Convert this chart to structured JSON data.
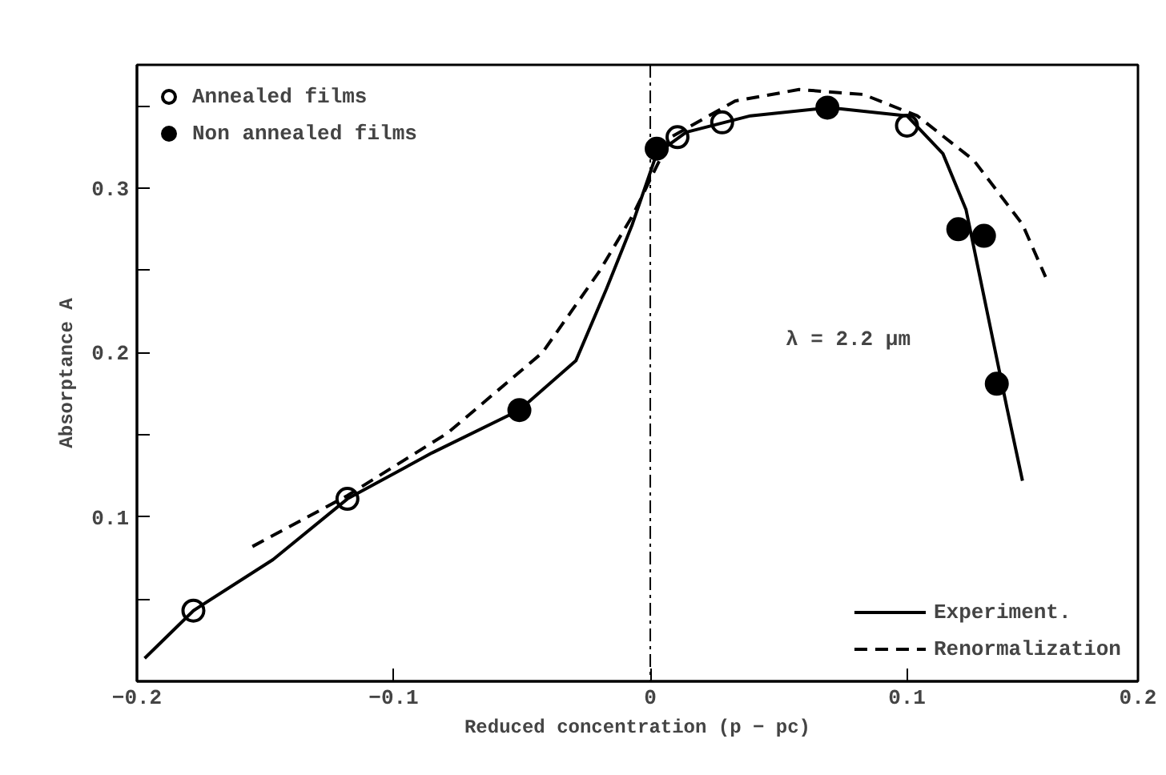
{
  "chart_data": {
    "type": "scatter",
    "xlabel": "Reduced concentration (p − pc)",
    "ylabel": "Absorptance A",
    "xlim": [
      -0.2,
      0.19
    ],
    "ylim": [
      0,
      0.375
    ],
    "xticks": [
      -0.2,
      -0.1,
      0,
      0.1,
      {
        "value": 0.19,
        "label": "0.2"
      }
    ],
    "yticks": [
      {
        "value": 0.05,
        "label": null
      },
      0.1,
      {
        "value": 0.15,
        "label": null
      },
      0.2,
      {
        "value": 0.25,
        "label": null
      },
      0.3,
      {
        "value": 0.35,
        "label": null
      }
    ],
    "grid": false,
    "legend": "top left",
    "series": [
      {
        "name": "Annealed films",
        "marker": "circle",
        "color": "#ffffff",
        "x": [
          -0.178,
          -0.118,
          0.0106,
          0.028,
          0.1
        ],
        "values": [
          0.043,
          0.111,
          0.331,
          0.34,
          0.338
        ]
      },
      {
        "name": "Non annealed films",
        "marker": "circle",
        "color": "#000000",
        "x": [
          -0.051,
          0.0025,
          0.069,
          0.12,
          0.13,
          0.135
        ],
        "values": [
          0.165,
          0.324,
          0.349,
          0.275,
          0.271,
          0.181
        ]
      },
      {
        "name": "Experiment.",
        "type": "line",
        "color": "#000000",
        "line_style": "solid",
        "x": [
          -0.197,
          -0.178,
          -0.147,
          -0.118,
          -0.085,
          -0.051,
          -0.029,
          -0.017,
          -0.007,
          0.0025,
          0.014,
          0.039,
          0.07,
          0.1,
          0.114,
          0.123,
          0.132,
          0.139,
          0.145
        ],
        "values": [
          0.014,
          0.043,
          0.074,
          0.111,
          0.139,
          0.165,
          0.195,
          0.239,
          0.278,
          0.321,
          0.334,
          0.344,
          0.349,
          0.344,
          0.321,
          0.287,
          0.219,
          0.166,
          0.122
        ]
      },
      {
        "name": "Renormalization",
        "type": "line",
        "color": "#000000",
        "line_style": "dashed",
        "x": [
          -0.155,
          -0.118,
          -0.079,
          -0.042,
          -0.02,
          -0.007,
          0.008,
          0.033,
          0.058,
          0.083,
          0.104,
          0.126,
          0.145,
          0.154
        ],
        "values": [
          0.082,
          0.113,
          0.151,
          0.2,
          0.249,
          0.283,
          0.331,
          0.353,
          0.36,
          0.357,
          0.344,
          0.317,
          0.278,
          0.246
        ]
      }
    ],
    "ref_lines": [
      {
        "axis": "x",
        "value": 0,
        "color": "#000000",
        "line_style": "dashdot"
      }
    ],
    "annotations": [
      "λ = 2.2 μm"
    ]
  }
}
